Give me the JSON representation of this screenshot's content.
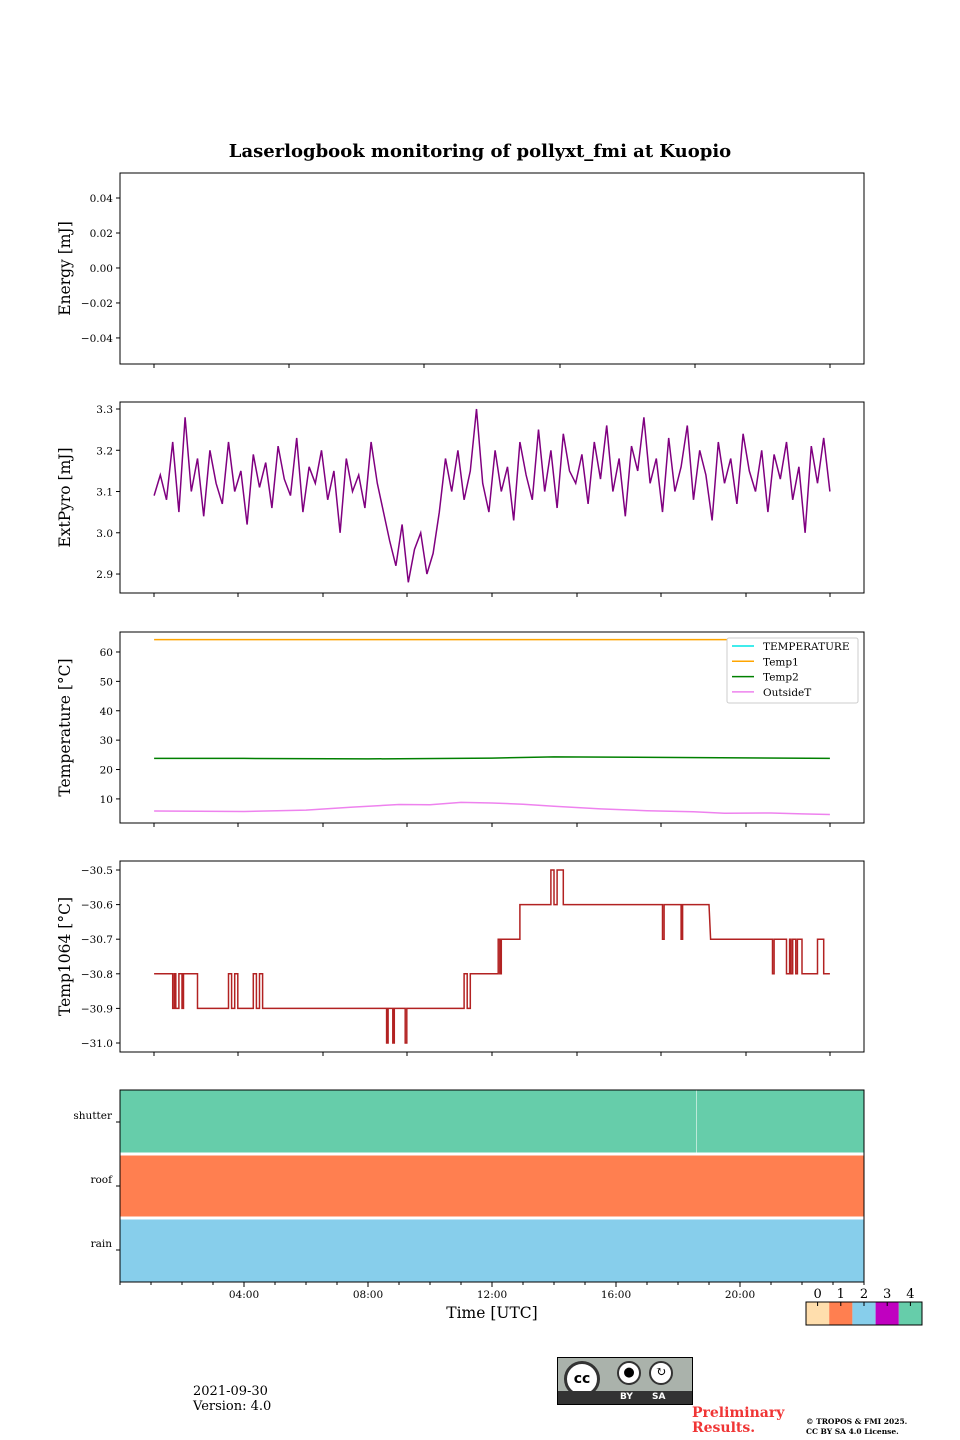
{
  "title": "Laserlogbook monitoring of pollyxt_fmi at Kuopio",
  "footer": {
    "date": "2021-09-30",
    "version": "Version: 4.0",
    "preliminary": [
      "Preliminary",
      "Results."
    ],
    "copyright": [
      "© TROPOS & FMI 2025.",
      "CC BY SA 4.0 License."
    ],
    "license_badge": {
      "by": "BY",
      "sa": "SA",
      "cc": "cc"
    }
  },
  "chart_data": [
    {
      "type": "line",
      "ylabel": "Energy [mJ]",
      "ylim": [
        -0.0549,
        0.0543
      ],
      "yticks": [
        0.04,
        0.02,
        0.0,
        -0.02,
        -0.04
      ],
      "ytick_labels": [
        "0.04",
        "0.02",
        "0.00",
        "−0.02",
        "−0.04"
      ],
      "series": []
    },
    {
      "type": "line",
      "ylabel": "ExtPyro [mJ]",
      "ylim": [
        2.854,
        3.317
      ],
      "yticks": [
        3.3,
        3.2,
        3.1,
        3.0,
        2.9
      ],
      "ytick_labels": [
        "3.3",
        "3.2",
        "3.1",
        "3.0",
        "2.9"
      ],
      "xlim": [
        0,
        24
      ],
      "x_start": 1.1,
      "x_end": 22.9,
      "color": "#800080",
      "values": [
        3.09,
        3.14,
        3.08,
        3.22,
        3.05,
        3.28,
        3.1,
        3.18,
        3.04,
        3.2,
        3.12,
        3.07,
        3.22,
        3.1,
        3.15,
        3.02,
        3.19,
        3.11,
        3.17,
        3.06,
        3.21,
        3.13,
        3.09,
        3.23,
        3.05,
        3.16,
        3.12,
        3.2,
        3.08,
        3.15,
        3.0,
        3.18,
        3.1,
        3.14,
        3.06,
        3.22,
        3.12,
        3.05,
        2.98,
        2.92,
        3.02,
        2.88,
        2.96,
        3.0,
        2.9,
        2.95,
        3.05,
        3.18,
        3.1,
        3.2,
        3.08,
        3.15,
        3.3,
        3.12,
        3.05,
        3.2,
        3.1,
        3.16,
        3.03,
        3.22,
        3.14,
        3.08,
        3.25,
        3.1,
        3.2,
        3.06,
        3.24,
        3.15,
        3.12,
        3.19,
        3.07,
        3.22,
        3.13,
        3.26,
        3.1,
        3.18,
        3.04,
        3.21,
        3.15,
        3.28,
        3.12,
        3.18,
        3.05,
        3.23,
        3.1,
        3.16,
        3.26,
        3.08,
        3.2,
        3.14,
        3.03,
        3.22,
        3.12,
        3.18,
        3.07,
        3.24,
        3.15,
        3.1,
        3.2,
        3.05,
        3.19,
        3.13,
        3.22,
        3.08,
        3.16,
        3.0,
        3.21,
        3.12,
        3.23,
        3.1
      ]
    },
    {
      "type": "line",
      "ylabel": "Temperature [°C]",
      "ylim": [
        1.8,
        66.8
      ],
      "yticks": [
        60,
        50,
        40,
        30,
        20,
        10
      ],
      "ytick_labels": [
        "60",
        "50",
        "40",
        "30",
        "20",
        "10"
      ],
      "xlim": [
        0,
        24
      ],
      "legend": {
        "placement": "top-right",
        "entries": [
          "TEMPERATURE",
          "Temp1",
          "Temp2",
          "OutsideT"
        ]
      },
      "series": [
        {
          "name": "TEMPERATURE",
          "color": "#00e5e5",
          "points": []
        },
        {
          "name": "Temp1",
          "color": "#ffa500",
          "points": [
            [
              1.1,
              64.2
            ],
            [
              22.9,
              64.2
            ]
          ]
        },
        {
          "name": "Temp2",
          "color": "#008000",
          "points": [
            [
              1.1,
              23.8
            ],
            [
              4,
              23.8
            ],
            [
              8,
              23.6
            ],
            [
              12,
              23.9
            ],
            [
              14,
              24.3
            ],
            [
              18,
              24.1
            ],
            [
              22.9,
              23.8
            ]
          ]
        },
        {
          "name": "OutsideT",
          "color": "#ee82ee",
          "points": [
            [
              1.1,
              5.9
            ],
            [
              4,
              5.7
            ],
            [
              6,
              6.2
            ],
            [
              7.5,
              7.2
            ],
            [
              9,
              8.1
            ],
            [
              10,
              8.0
            ],
            [
              11,
              8.8
            ],
            [
              12,
              8.6
            ],
            [
              13,
              8.2
            ],
            [
              14,
              7.5
            ],
            [
              15.5,
              6.6
            ],
            [
              17,
              6.0
            ],
            [
              18.5,
              5.6
            ],
            [
              19.5,
              5.1
            ],
            [
              21,
              5.2
            ],
            [
              22,
              4.9
            ],
            [
              22.9,
              4.7
            ]
          ]
        }
      ]
    },
    {
      "type": "line",
      "ylabel": "Temp1064 [°C]",
      "ylim": [
        -31.026,
        -30.474
      ],
      "yticks": [
        -30.5,
        -30.6,
        -30.7,
        -30.8,
        -30.9,
        -31.0
      ],
      "ytick_labels": [
        "−30.5",
        "−30.6",
        "−30.7",
        "−30.8",
        "−30.9",
        "−31.0"
      ],
      "xlim": [
        0,
        24
      ],
      "color": "#b22222",
      "points": [
        [
          1.1,
          -30.8
        ],
        [
          1.7,
          -30.8
        ],
        [
          1.7,
          -30.9
        ],
        [
          1.75,
          -30.9
        ],
        [
          1.75,
          -30.8
        ],
        [
          1.8,
          -30.8
        ],
        [
          1.8,
          -30.9
        ],
        [
          1.9,
          -30.9
        ],
        [
          1.9,
          -30.8
        ],
        [
          2.0,
          -30.8
        ],
        [
          2.0,
          -30.9
        ],
        [
          2.05,
          -30.9
        ],
        [
          2.05,
          -30.8
        ],
        [
          2.5,
          -30.8
        ],
        [
          2.5,
          -30.9
        ],
        [
          3.5,
          -30.9
        ],
        [
          3.5,
          -30.8
        ],
        [
          3.6,
          -30.8
        ],
        [
          3.6,
          -30.9
        ],
        [
          3.7,
          -30.9
        ],
        [
          3.7,
          -30.8
        ],
        [
          3.8,
          -30.8
        ],
        [
          3.8,
          -30.9
        ],
        [
          4.3,
          -30.9
        ],
        [
          4.3,
          -30.8
        ],
        [
          4.4,
          -30.8
        ],
        [
          4.4,
          -30.9
        ],
        [
          4.5,
          -30.9
        ],
        [
          4.5,
          -30.8
        ],
        [
          4.6,
          -30.8
        ],
        [
          4.6,
          -30.9
        ],
        [
          8.6,
          -30.9
        ],
        [
          8.6,
          -31.0
        ],
        [
          8.65,
          -31.0
        ],
        [
          8.65,
          -30.9
        ],
        [
          8.8,
          -30.9
        ],
        [
          8.8,
          -31.0
        ],
        [
          8.85,
          -31.0
        ],
        [
          8.85,
          -30.9
        ],
        [
          9.2,
          -30.9
        ],
        [
          9.2,
          -31.0
        ],
        [
          9.25,
          -31.0
        ],
        [
          9.25,
          -30.9
        ],
        [
          11.1,
          -30.9
        ],
        [
          11.1,
          -30.8
        ],
        [
          11.2,
          -30.8
        ],
        [
          11.2,
          -30.9
        ],
        [
          11.3,
          -30.9
        ],
        [
          11.3,
          -30.8
        ],
        [
          12.2,
          -30.8
        ],
        [
          12.2,
          -30.7
        ],
        [
          12.25,
          -30.7
        ],
        [
          12.25,
          -30.8
        ],
        [
          12.3,
          -30.8
        ],
        [
          12.3,
          -30.7
        ],
        [
          12.9,
          -30.7
        ],
        [
          12.9,
          -30.6
        ],
        [
          13.9,
          -30.6
        ],
        [
          13.9,
          -30.5
        ],
        [
          14.0,
          -30.5
        ],
        [
          14.0,
          -30.6
        ],
        [
          14.1,
          -30.6
        ],
        [
          14.1,
          -30.5
        ],
        [
          14.3,
          -30.5
        ],
        [
          14.3,
          -30.6
        ],
        [
          17.5,
          -30.6
        ],
        [
          17.5,
          -30.7
        ],
        [
          17.55,
          -30.7
        ],
        [
          17.55,
          -30.6
        ],
        [
          18.1,
          -30.6
        ],
        [
          18.1,
          -30.7
        ],
        [
          18.15,
          -30.7
        ],
        [
          18.15,
          -30.6
        ],
        [
          19.0,
          -30.6
        ],
        [
          19.05,
          -30.7
        ],
        [
          21.05,
          -30.7
        ],
        [
          21.05,
          -30.8
        ],
        [
          21.1,
          -30.8
        ],
        [
          21.1,
          -30.7
        ],
        [
          21.5,
          -30.7
        ],
        [
          21.5,
          -30.8
        ],
        [
          21.6,
          -30.8
        ],
        [
          21.6,
          -30.7
        ],
        [
          21.65,
          -30.7
        ],
        [
          21.65,
          -30.8
        ],
        [
          21.7,
          -30.8
        ],
        [
          21.7,
          -30.7
        ],
        [
          21.8,
          -30.7
        ],
        [
          21.8,
          -30.8
        ],
        [
          21.85,
          -30.8
        ],
        [
          21.85,
          -30.7
        ],
        [
          22.0,
          -30.7
        ],
        [
          22.0,
          -30.8
        ],
        [
          22.5,
          -30.8
        ],
        [
          22.5,
          -30.7
        ],
        [
          22.7,
          -30.7
        ],
        [
          22.7,
          -30.8
        ],
        [
          22.9,
          -30.8
        ]
      ]
    },
    {
      "type": "heatmap",
      "xlabel": "Time [UTC]",
      "xlim": [
        0,
        24
      ],
      "xticks": [
        4,
        8,
        12,
        16,
        20
      ],
      "xtick_labels": [
        "04:00",
        "08:00",
        "12:00",
        "16:00",
        "20:00"
      ],
      "rows": [
        {
          "name": "shutter",
          "value": 4,
          "gap_at": 18.6
        },
        {
          "name": "roof",
          "value": 1
        },
        {
          "name": "rain",
          "value": 2
        }
      ],
      "colorbar": {
        "ticks": [
          "0",
          "1",
          "2",
          "3",
          "4"
        ],
        "colors": [
          "#ffdead",
          "#ff7f50",
          "#87ceeb",
          "#c000c0",
          "#66cdaa"
        ]
      }
    }
  ]
}
